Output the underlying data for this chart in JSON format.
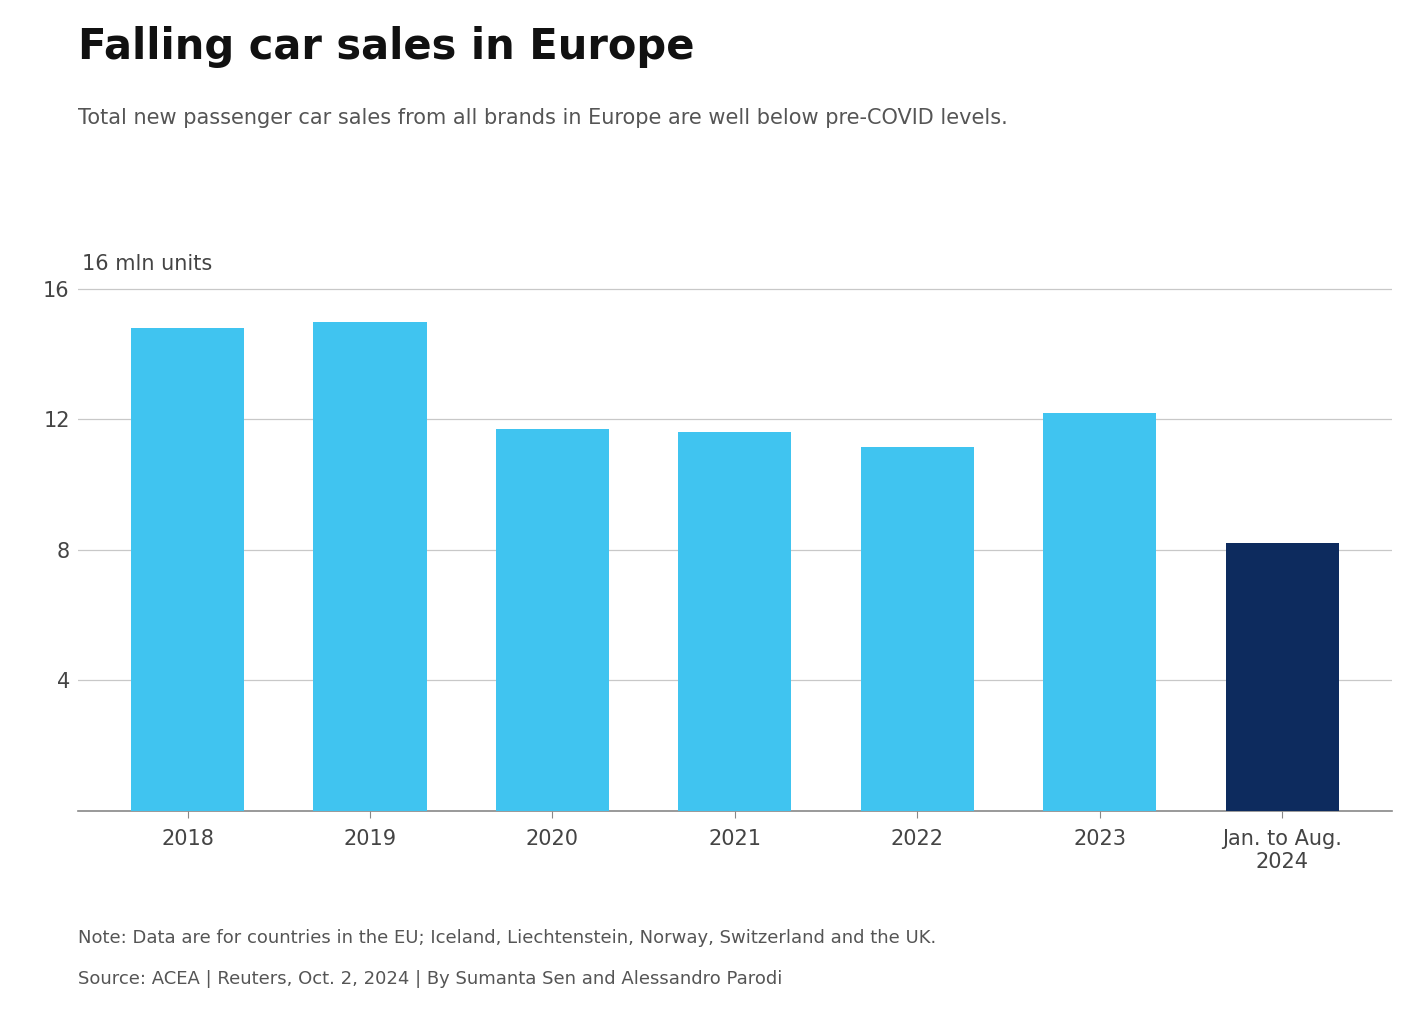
{
  "title": "Falling car sales in Europe",
  "subtitle": "Total new passenger car sales from all brands in Europe are well below pre-COVID levels.",
  "ylabel_text": "16 mln units",
  "categories": [
    "2018",
    "2019",
    "2020",
    "2021",
    "2022",
    "2023",
    "Jan. to Aug.\n2024"
  ],
  "values": [
    14.8,
    15.0,
    11.7,
    11.6,
    11.15,
    12.2,
    8.2
  ],
  "bar_colors": [
    "#40C4F0",
    "#40C4F0",
    "#40C4F0",
    "#40C4F0",
    "#40C4F0",
    "#40C4F0",
    "#0D2B5E"
  ],
  "ylim": [
    0,
    17.0
  ],
  "yticks": [
    4,
    8,
    12,
    16
  ],
  "note_line1": "Note: Data are for countries in the EU; Iceland, Liechtenstein, Norway, Switzerland and the UK.",
  "source_line": "Source: ACEA | Reuters, Oct. 2, 2024 | By Sumanta Sen and Alessandro Parodi",
  "background_color": "#FFFFFF",
  "grid_color": "#C8C8C8",
  "title_fontsize": 30,
  "subtitle_fontsize": 15,
  "tick_fontsize": 15,
  "note_fontsize": 13
}
